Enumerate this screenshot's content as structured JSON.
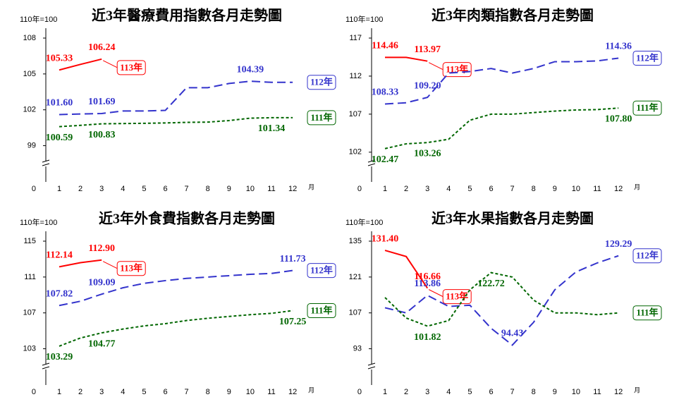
{
  "chart_data": [
    {
      "type": "line",
      "title": "近3年醫療費用指數各月走勢圖",
      "y_unit": "110年=100",
      "x_unit": "月",
      "origin_label": "0",
      "categories": [
        "1",
        "2",
        "3",
        "4",
        "5",
        "6",
        "7",
        "8",
        "9",
        "10",
        "11",
        "12"
      ],
      "ylim": [
        97.5,
        108
      ],
      "yticks": [
        99,
        102,
        105,
        108
      ],
      "series": [
        {
          "name": "113年",
          "color": "#ff0000",
          "style": "solid",
          "values": [
            105.33,
            105.8,
            106.24,
            null,
            null,
            null,
            null,
            null,
            null,
            null,
            null,
            null
          ],
          "value_labels": [
            "105.33",
            null,
            "106.24",
            null,
            null,
            null,
            null,
            null,
            null,
            null,
            null,
            null
          ]
        },
        {
          "name": "112年",
          "color": "#3333cc",
          "style": "dashed",
          "values": [
            101.6,
            101.65,
            101.69,
            101.9,
            101.9,
            101.95,
            103.85,
            103.85,
            104.2,
            104.39,
            104.3,
            104.3
          ],
          "value_labels": [
            "101.60",
            null,
            "101.69",
            null,
            null,
            null,
            null,
            null,
            null,
            "104.39",
            null,
            null
          ]
        },
        {
          "name": "111年",
          "color": "#006600",
          "style": "dotted",
          "values": [
            100.59,
            100.7,
            100.83,
            100.85,
            100.87,
            100.9,
            100.95,
            100.97,
            101.1,
            101.3,
            101.34,
            101.34
          ],
          "value_labels": [
            "100.59",
            null,
            "100.83",
            null,
            null,
            null,
            null,
            null,
            null,
            null,
            "101.34",
            null
          ]
        }
      ]
    },
    {
      "type": "line",
      "title": "近3年肉類指數各月走勢圖",
      "y_unit": "110年=100",
      "x_unit": "月",
      "origin_label": "0",
      "categories": [
        "1",
        "2",
        "3",
        "4",
        "5",
        "6",
        "7",
        "8",
        "9",
        "10",
        "11",
        "12"
      ],
      "ylim": [
        100.5,
        117
      ],
      "yticks": [
        102,
        107,
        112,
        117
      ],
      "series": [
        {
          "name": "113年",
          "color": "#ff0000",
          "style": "solid",
          "values": [
            114.46,
            114.46,
            113.97,
            null,
            null,
            null,
            null,
            null,
            null,
            null,
            null,
            null
          ],
          "value_labels": [
            "114.46",
            null,
            "113.97",
            null,
            null,
            null,
            null,
            null,
            null,
            null,
            null,
            null
          ]
        },
        {
          "name": "112年",
          "color": "#3333cc",
          "style": "dashed",
          "values": [
            108.33,
            108.5,
            109.2,
            112.4,
            112.6,
            113.0,
            112.4,
            113.0,
            113.9,
            113.9,
            114.0,
            114.36
          ],
          "value_labels": [
            "108.33",
            null,
            "109.20",
            null,
            null,
            null,
            null,
            null,
            null,
            null,
            null,
            "114.36"
          ]
        },
        {
          "name": "111年",
          "color": "#006600",
          "style": "dotted",
          "values": [
            102.47,
            103.1,
            103.26,
            103.7,
            106.2,
            107.0,
            107.0,
            107.2,
            107.4,
            107.55,
            107.6,
            107.8
          ],
          "value_labels": [
            "102.47",
            null,
            "103.26",
            null,
            null,
            null,
            null,
            null,
            null,
            null,
            null,
            "107.80"
          ]
        }
      ]
    },
    {
      "type": "line",
      "title": "近3年外食費指數各月走勢圖",
      "y_unit": "110年=100",
      "x_unit": "月",
      "origin_label": "0",
      "categories": [
        "1",
        "2",
        "3",
        "4",
        "5",
        "6",
        "7",
        "8",
        "9",
        "10",
        "11",
        "12"
      ],
      "ylim": [
        101,
        115
      ],
      "yticks": [
        103,
        107,
        111,
        115
      ],
      "series": [
        {
          "name": "113年",
          "color": "#ff0000",
          "style": "solid",
          "values": [
            112.14,
            112.6,
            112.9,
            null,
            null,
            null,
            null,
            null,
            null,
            null,
            null,
            null
          ],
          "value_labels": [
            "112.14",
            null,
            "112.90",
            null,
            null,
            null,
            null,
            null,
            null,
            null,
            null,
            null
          ]
        },
        {
          "name": "112年",
          "color": "#3333cc",
          "style": "dashed",
          "values": [
            107.82,
            108.3,
            109.09,
            109.8,
            110.3,
            110.6,
            110.85,
            111.0,
            111.15,
            111.3,
            111.4,
            111.73
          ],
          "value_labels": [
            "107.82",
            null,
            "109.09",
            null,
            null,
            null,
            null,
            null,
            null,
            null,
            null,
            "111.73"
          ]
        },
        {
          "name": "111年",
          "color": "#006600",
          "style": "dotted",
          "values": [
            103.29,
            104.2,
            104.77,
            105.2,
            105.55,
            105.8,
            106.15,
            106.4,
            106.6,
            106.8,
            106.95,
            107.25
          ],
          "value_labels": [
            "103.29",
            null,
            "104.77",
            null,
            null,
            null,
            null,
            null,
            null,
            null,
            null,
            "107.25"
          ]
        }
      ]
    },
    {
      "type": "line",
      "title": "近3年水果指數各月走勢圖",
      "y_unit": "110年=100",
      "x_unit": "月",
      "origin_label": "0",
      "categories": [
        "1",
        "2",
        "3",
        "4",
        "5",
        "6",
        "7",
        "8",
        "9",
        "10",
        "11",
        "12"
      ],
      "ylim": [
        86,
        135
      ],
      "yticks": [
        93,
        107,
        121,
        135
      ],
      "series": [
        {
          "name": "113年",
          "color": "#ff0000",
          "style": "solid",
          "values": [
            131.4,
            129.0,
            116.66,
            null,
            null,
            null,
            null,
            null,
            null,
            null,
            null,
            null
          ],
          "value_labels": [
            "131.40",
            null,
            "116.66",
            null,
            null,
            null,
            null,
            null,
            null,
            null,
            null,
            null
          ]
        },
        {
          "name": "112年",
          "color": "#3333cc",
          "style": "dashed",
          "values": [
            109,
            107,
            113.86,
            109.5,
            110,
            101,
            94.43,
            103.3,
            116,
            123,
            126.5,
            129.29
          ],
          "value_labels": [
            null,
            null,
            "113.86",
            null,
            null,
            null,
            "94.43",
            null,
            null,
            null,
            null,
            "129.29"
          ]
        },
        {
          "name": "111年",
          "color": "#006600",
          "style": "dotted",
          "values": [
            113,
            105,
            101.82,
            104,
            116,
            122.72,
            121,
            112,
            107,
            107,
            106.3,
            107
          ],
          "value_labels": [
            null,
            null,
            "101.82",
            null,
            null,
            "122.72",
            null,
            null,
            null,
            null,
            null,
            null
          ]
        }
      ]
    }
  ]
}
